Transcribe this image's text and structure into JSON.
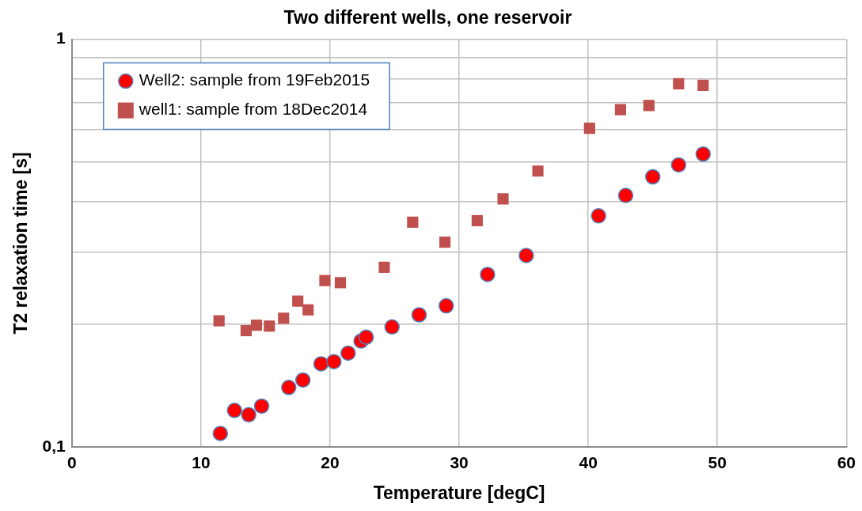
{
  "chart_data": {
    "type": "scatter",
    "title": "Two different wells, one reservoir",
    "xlabel": "Temperature [degC]",
    "ylabel": "T2 relaxation time [s]",
    "log": "y",
    "grid": true,
    "legend": "top left",
    "xlim": [
      0,
      60
    ],
    "xticks": [
      0,
      10,
      20,
      30,
      40,
      50,
      60
    ],
    "ylim": [
      0.1,
      1
    ],
    "yticks": [
      {
        "value": 0.1,
        "label": "0,1"
      },
      {
        "value": 0.2,
        "label": null
      },
      {
        "value": 0.3,
        "label": null
      },
      {
        "value": 0.4,
        "label": null
      },
      {
        "value": 0.5,
        "label": null
      },
      {
        "value": 0.6,
        "label": null
      },
      {
        "value": 0.7,
        "label": null
      },
      {
        "value": 0.8,
        "label": null
      },
      {
        "value": 0.9,
        "label": null
      },
      1
    ],
    "series": [
      {
        "name": "Well2: sample from 19Feb2015",
        "color": "#ff0000",
        "marker": "circle",
        "x": [
          11.5,
          12.6,
          13.7,
          14.7,
          16.8,
          17.9,
          19.3,
          20.3,
          21.4,
          22.4,
          22.8,
          24.8,
          26.9,
          29.0,
          32.2,
          35.2,
          40.8,
          42.9,
          45.0,
          47.0,
          48.9
        ],
        "values": [
          0.108,
          0.123,
          0.12,
          0.126,
          0.14,
          0.146,
          0.16,
          0.162,
          0.17,
          0.182,
          0.186,
          0.197,
          0.211,
          0.222,
          0.265,
          0.295,
          0.369,
          0.414,
          0.46,
          0.492,
          0.523
        ]
      },
      {
        "name": "well1: sample from 18Dec2014",
        "color": "#c0504d",
        "marker": "square",
        "x": [
          11.4,
          13.5,
          14.3,
          15.3,
          16.4,
          17.5,
          18.3,
          19.6,
          20.8,
          24.2,
          26.4,
          28.9,
          31.4,
          33.4,
          36.1,
          40.1,
          42.5,
          44.7,
          47.0,
          48.9
        ],
        "values": [
          0.204,
          0.193,
          0.199,
          0.198,
          0.207,
          0.228,
          0.217,
          0.256,
          0.253,
          0.276,
          0.356,
          0.318,
          0.359,
          0.406,
          0.475,
          0.605,
          0.672,
          0.688,
          0.778,
          0.771
        ]
      }
    ]
  }
}
